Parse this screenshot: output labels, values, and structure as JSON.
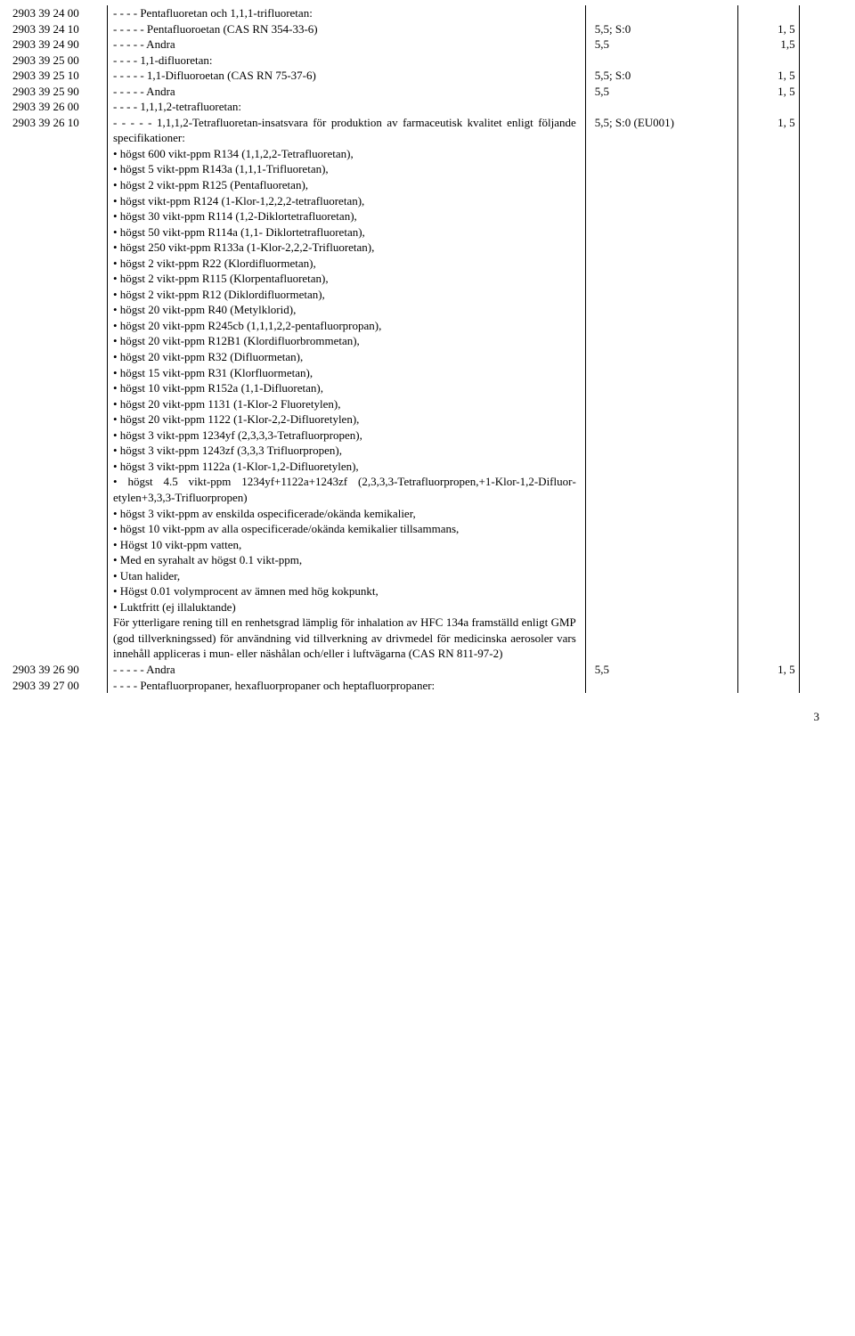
{
  "rows": [
    {
      "code": "2903 39 24 00",
      "desc": "- - - - Pentafluoretan och 1,1,1-trifluoretan:",
      "tariff": "",
      "extra": ""
    },
    {
      "code": "2903 39 24 10",
      "desc": "- - - - - Pentafluoroetan (CAS RN 354-33-6)",
      "tariff": "5,5; S:0",
      "extra": "1, 5"
    },
    {
      "code": "2903 39 24 90",
      "desc": "- - - - - Andra",
      "tariff": "5,5",
      "extra": "1,5"
    },
    {
      "code": "2903 39 25 00",
      "desc": "- - - - 1,1-difluoretan:",
      "tariff": "",
      "extra": ""
    },
    {
      "code": "2903 39 25 10",
      "desc": "- - - - - 1,1-Difluoroetan (CAS RN 75-37-6)",
      "tariff": "5,5; S:0",
      "extra": "1, 5"
    },
    {
      "code": "2903 39 25 90",
      "desc": "- - - - - Andra",
      "tariff": "5,5",
      "extra": "1, 5"
    },
    {
      "code": "2903 39 26 00",
      "desc": "- - - - 1,1,1,2-tetrafluoretan:",
      "tariff": "",
      "extra": ""
    }
  ],
  "bigrow": {
    "code": "2903 39 26 10",
    "lead": "- - - - - 1,1,1,2-Tetrafluoretan-insatsvara för produktion av farmaceutisk kvalitet enligt följande specifikationer:",
    "tariff": "5,5; S:0 (EU001)",
    "extra": "1, 5",
    "bullets": [
      "• högst 600 vikt-ppm R134 (1,1,2,2-Tetra­fluoretan),",
      "• högst 5 vikt-ppm R143a (1,1,1-Trifluoretan),",
      "• högst 2 vikt-ppm R125 (Pentafluoretan),",
      "• högst vikt-ppm R124 (1-Klor-1,2,2,2-tetra­fluoretan),",
      "• högst 30 vikt-ppm R114 (1,2-Diklor­tetrafluoretan),",
      "• högst 50 vikt-ppm R114a (1,1- Diklor­tetrafluoretan),",
      "• högst 250 vikt-ppm R133a (1-Klor-2,2,2-Tri­fluoretan),",
      "• högst 2 vikt-ppm R22 (Klordifluormetan),",
      "• högst 2 vikt-ppm R115 (Klorpentafluoretan),",
      "• högst 2 vikt-ppm R12 (Diklordifluormetan),",
      "• högst 20 vikt-ppm R40 (Metylklorid),",
      "• högst 20 vikt-ppm R245cb (1,1,1,2,2-penta­fluorpropan),",
      "• högst 20 vikt-ppm R12B1 (Klordifluor­brommetan),",
      "• högst 20 vikt-ppm R32 (Difluormetan),",
      "• högst 15 vikt-ppm R31 (Klorfluormetan),",
      "• högst 10 vikt-ppm R152a (1,1-Difluoretan),",
      "• högst 20 vikt-ppm 1131 (1-Klor-2 Fluor­etylen),",
      "• högst 20 vikt-ppm 1122 (1-Klor-2,2-Difluor­etylen),",
      "• högst 3 vikt-ppm 1234yf (2,3,3,3-Tetrafluor­propen),",
      "• högst 3 vikt-ppm 1243zf (3,3,3 Trifluor­propen),",
      "• högst 3 vikt-ppm 1122a (1-Klor-1,2-Difluoretylen),",
      "• högst 4.5 vikt-ppm 1234yf+1122a+1243zf (2,3,3,3-Tetrafluorpropen,+1-Klor-1,2-Difluor­etylen+3,3,3-Trifluorpropen)",
      "• högst 3 vikt-ppm av enskilda ospeci­ficerade/okända kemikalier,",
      "• högst 10 vikt-ppm av alla ospeci­ficerade/okända kemikalier tillsammans,",
      "• Högst 10 vikt-ppm vatten,",
      "• Med en syrahalt av högst 0.1 vikt-ppm,",
      "• Utan halider,",
      "• Högst 0.01 volymprocent av ämnen med hög kokpunkt,",
      "• Luktfritt (ej illaluktande)"
    ],
    "tail": "För ytterligare rening till en renhetsgrad lämplig för inhalation av HFC 134a framställd enligt GMP (god tillverkningssed) för användning vid tillverkning av drivmedel för medicinska aerosoler vars innehåll appliceras i mun- eller näshålan och/eller i luftvägarna (CAS RN 811-97-2)"
  },
  "rows_after": [
    {
      "code": "2903 39 26 90",
      "desc": "- - - - - Andra",
      "tariff": "5,5",
      "extra": "1, 5"
    },
    {
      "code": "2903 39 27 00",
      "desc": "- - - - Pentafluorpropaner, hexafluorpropaner och heptafluorpropaner:",
      "tariff": "",
      "extra": ""
    }
  ],
  "page_number": "3"
}
